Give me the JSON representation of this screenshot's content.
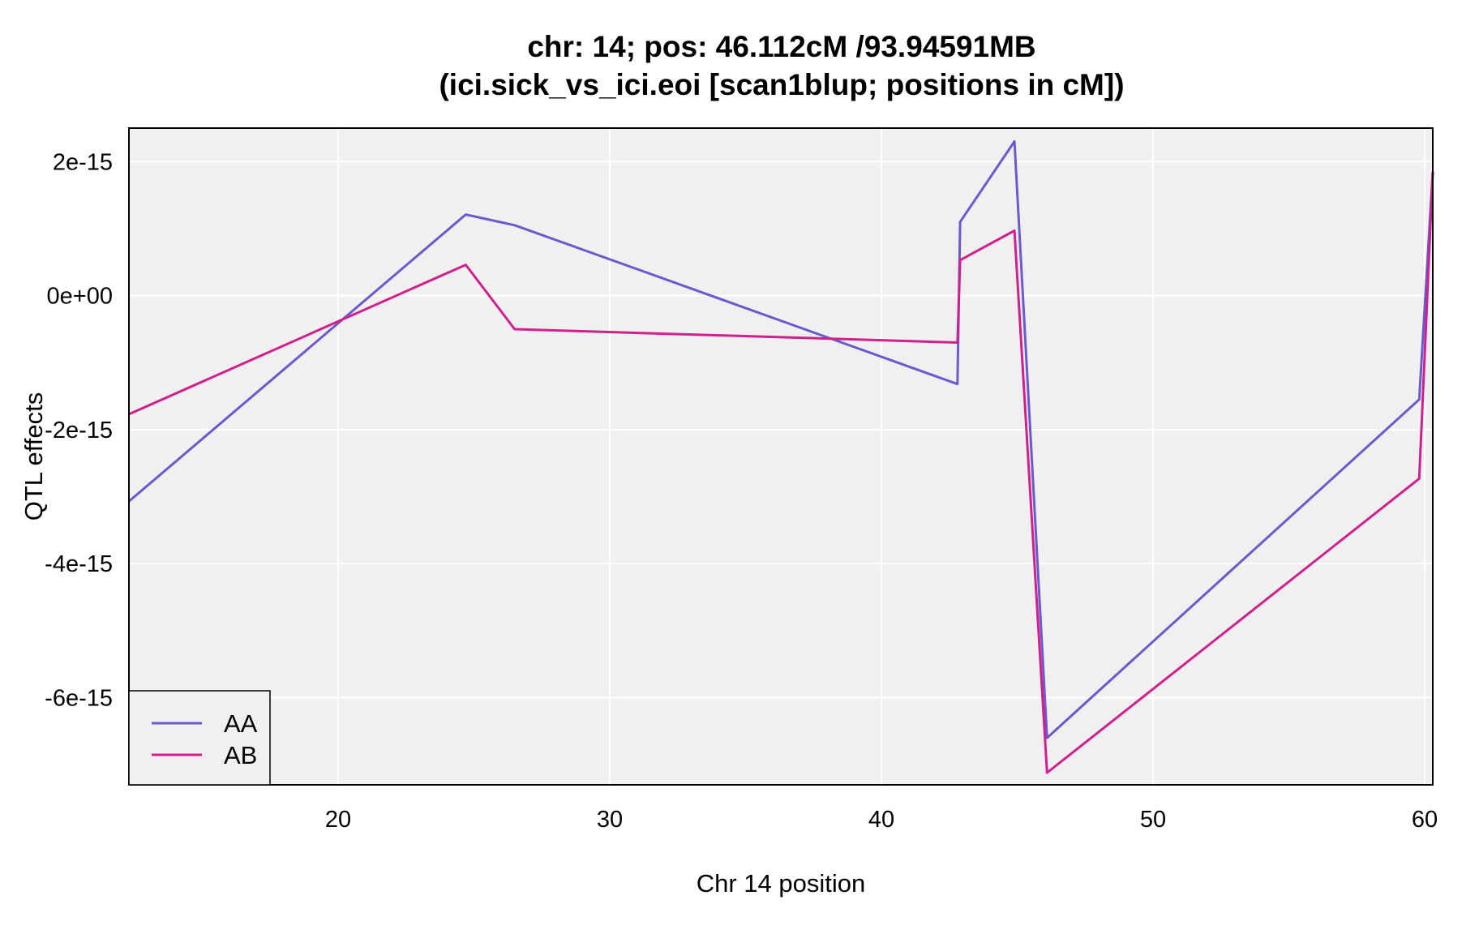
{
  "chart_data": {
    "type": "line",
    "title_line1": "chr: 14; pos: 46.112cM /93.94591MB",
    "title_line2": "(ici.sick_vs_ici.eoi [scan1blup; positions in cM])",
    "xlabel": "Chr 14 position",
    "ylabel": "QTL effects",
    "xlim": [
      12.3,
      60.3
    ],
    "ylim": [
      -7.3e-15,
      2.5e-15
    ],
    "x_ticks": [
      20,
      30,
      40,
      50,
      60
    ],
    "x_tick_labels": [
      "20",
      "30",
      "40",
      "50",
      "60"
    ],
    "y_ticks": [
      2e-15,
      0,
      -2e-15,
      -4e-15,
      -6e-15
    ],
    "y_tick_labels": [
      "2e-15",
      "0e+00",
      "-2e-15",
      "-4e-15",
      "-6e-15"
    ],
    "grid": true,
    "legend_position": "bottom-left",
    "series": [
      {
        "name": "AA",
        "color": "#6A5ACD",
        "x": [
          12.3,
          24.7,
          26.5,
          42.8,
          42.9,
          44.9,
          46.1,
          59.8,
          60.3
        ],
        "y": [
          -3.07e-15,
          1.21e-15,
          1.05e-15,
          -1.32e-15,
          1.1e-15,
          2.3e-15,
          -6.6e-15,
          -1.55e-15,
          1.85e-15
        ]
      },
      {
        "name": "AB",
        "color": "#D0208E",
        "x": [
          12.3,
          24.7,
          26.5,
          42.8,
          42.9,
          44.9,
          46.1,
          59.8,
          60.3
        ],
        "y": [
          -1.77e-15,
          4.6e-16,
          -5e-16,
          -7e-16,
          5.3e-16,
          9.7e-16,
          -7.12e-15,
          -2.73e-15,
          1.85e-15
        ]
      }
    ]
  }
}
